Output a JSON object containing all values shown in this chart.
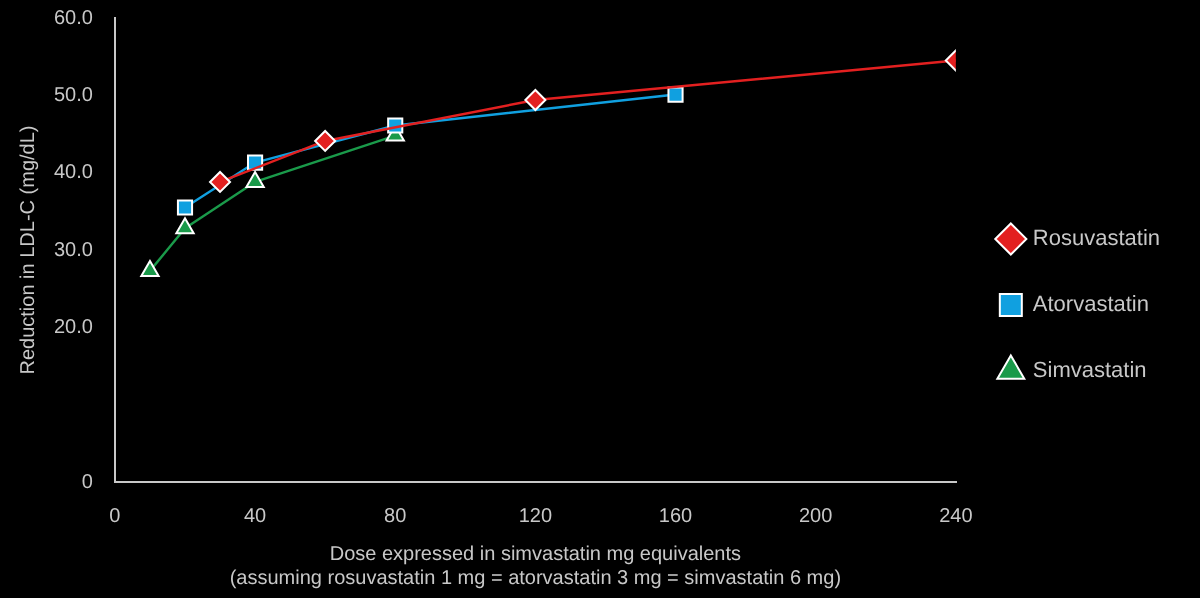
{
  "chart_data": {
    "type": "line",
    "ylabel": "Reduction in LDL-C (mg/dL)",
    "xlabel": "Dose expressed in simvastatin mg equivalents\n(assuming rosuvastatin 1 mg = atorvastatin 3 mg = simvastatin 6 mg)",
    "xlim": [
      0,
      240
    ],
    "xticks": [
      0,
      40,
      80,
      120,
      160,
      200,
      240
    ],
    "ylim": [
      0,
      60
    ],
    "yticks": [
      0,
      {
        "value": 20,
        "label": "20.0"
      },
      {
        "value": 30,
        "label": "30.0"
      },
      {
        "value": 40,
        "label": "40.0"
      },
      {
        "value": 50,
        "label": "50.0"
      },
      {
        "value": 60,
        "label": "60.0"
      }
    ],
    "legend": "right",
    "grid": false,
    "series": [
      {
        "name": "Rosuvastatin",
        "color": "#e32020",
        "marker": "diamond",
        "x": [
          30,
          60,
          120,
          240
        ],
        "values": [
          38.8,
          44.1,
          49.4,
          54.5
        ]
      },
      {
        "name": "Atorvastatin",
        "color": "#10a0e0",
        "marker": "square",
        "x": [
          20,
          40,
          80,
          160
        ],
        "values": [
          35.5,
          41.3,
          46.1,
          50.1
        ]
      },
      {
        "name": "Simvastatin",
        "color": "#1a9a4a",
        "marker": "triangle",
        "x": [
          10,
          20,
          40,
          80
        ],
        "values": [
          27.3,
          32.8,
          38.8,
          44.8
        ]
      }
    ]
  }
}
